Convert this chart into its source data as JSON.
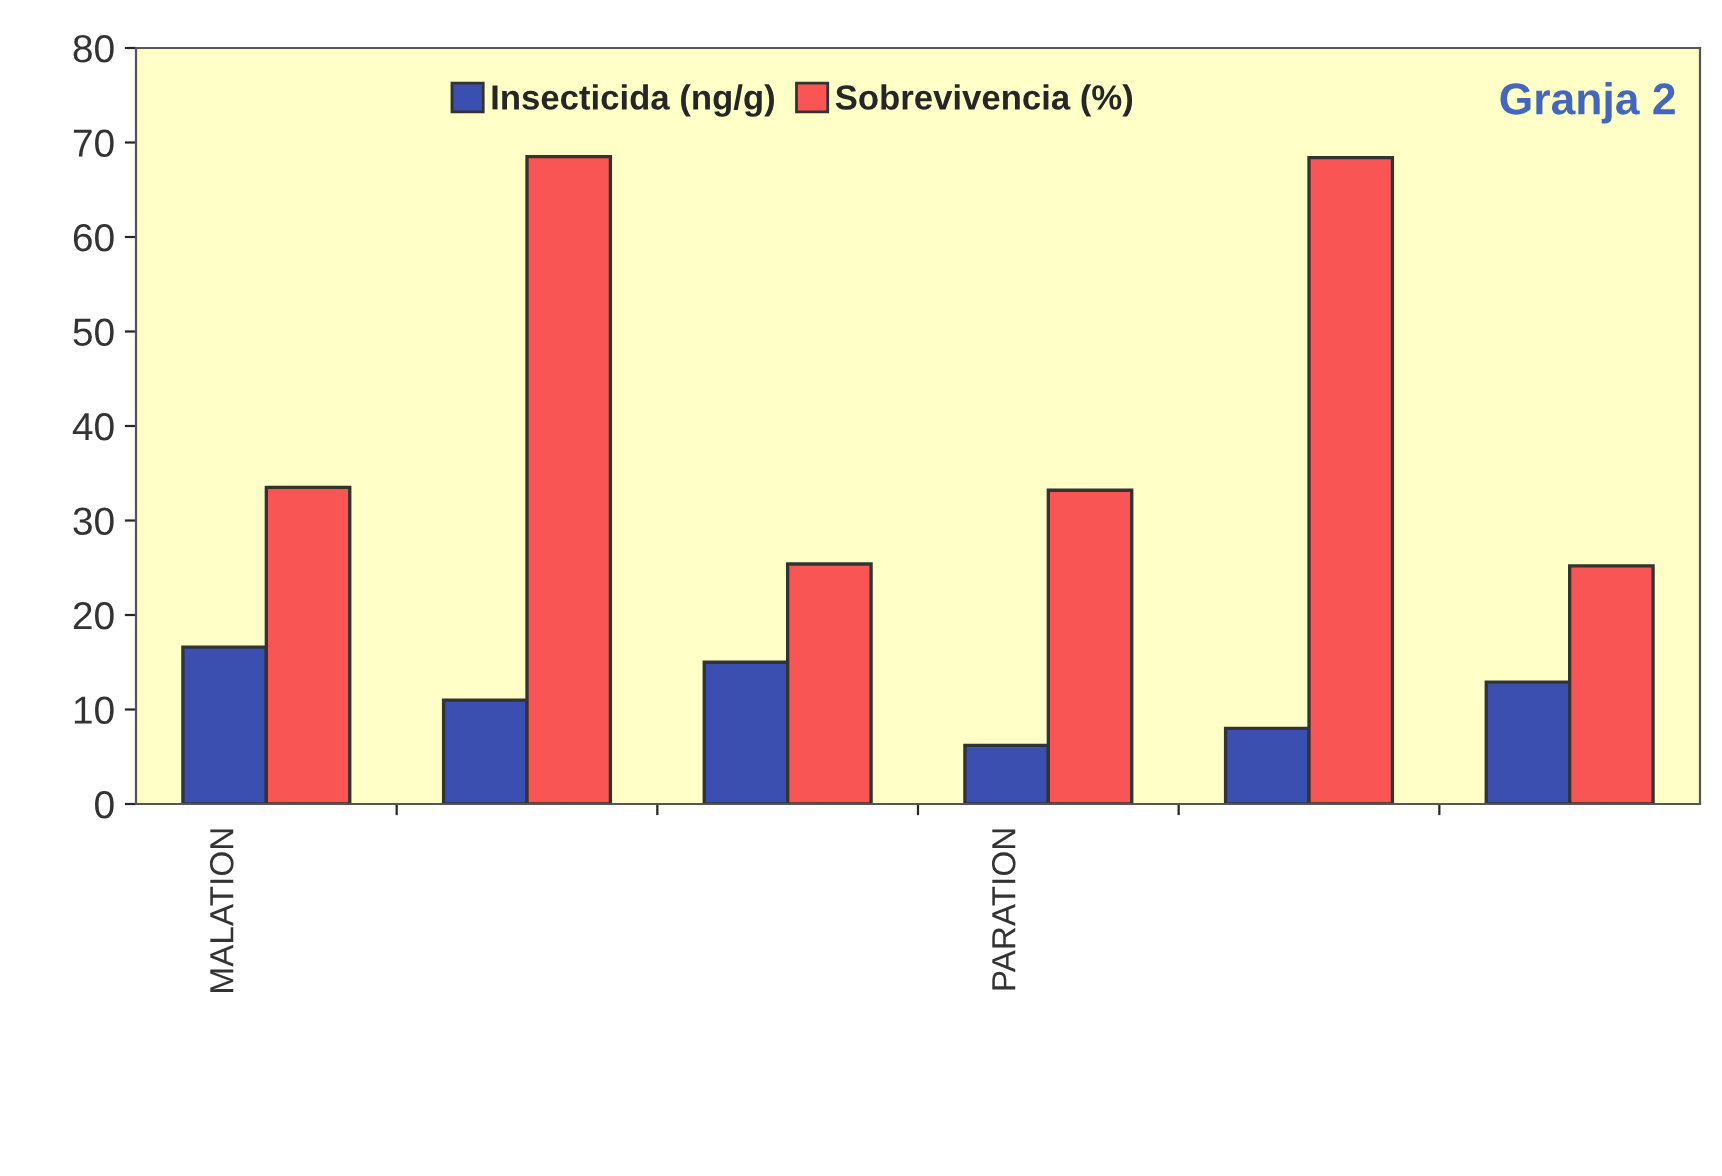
{
  "chart_data": {
    "type": "bar",
    "categories": [
      "MALATION",
      null,
      null,
      "PARATION",
      null,
      null
    ],
    "series": [
      {
        "name": "Insecticida (ng/g)",
        "color": "#3a4fb0",
        "values": [
          16.6,
          11.0,
          15.0,
          6.2,
          8.0,
          12.9
        ]
      },
      {
        "name": "Sobrevivencia (%)",
        "color": "#fa5555",
        "values": [
          33.5,
          68.5,
          25.4,
          33.2,
          68.4,
          25.2
        ]
      }
    ],
    "ylim": [
      0,
      80
    ],
    "yticks": [
      0,
      10,
      20,
      30,
      40,
      50,
      60,
      70,
      80
    ],
    "annotations": [
      "Granja 2"
    ],
    "legend": "top",
    "grid": false
  }
}
